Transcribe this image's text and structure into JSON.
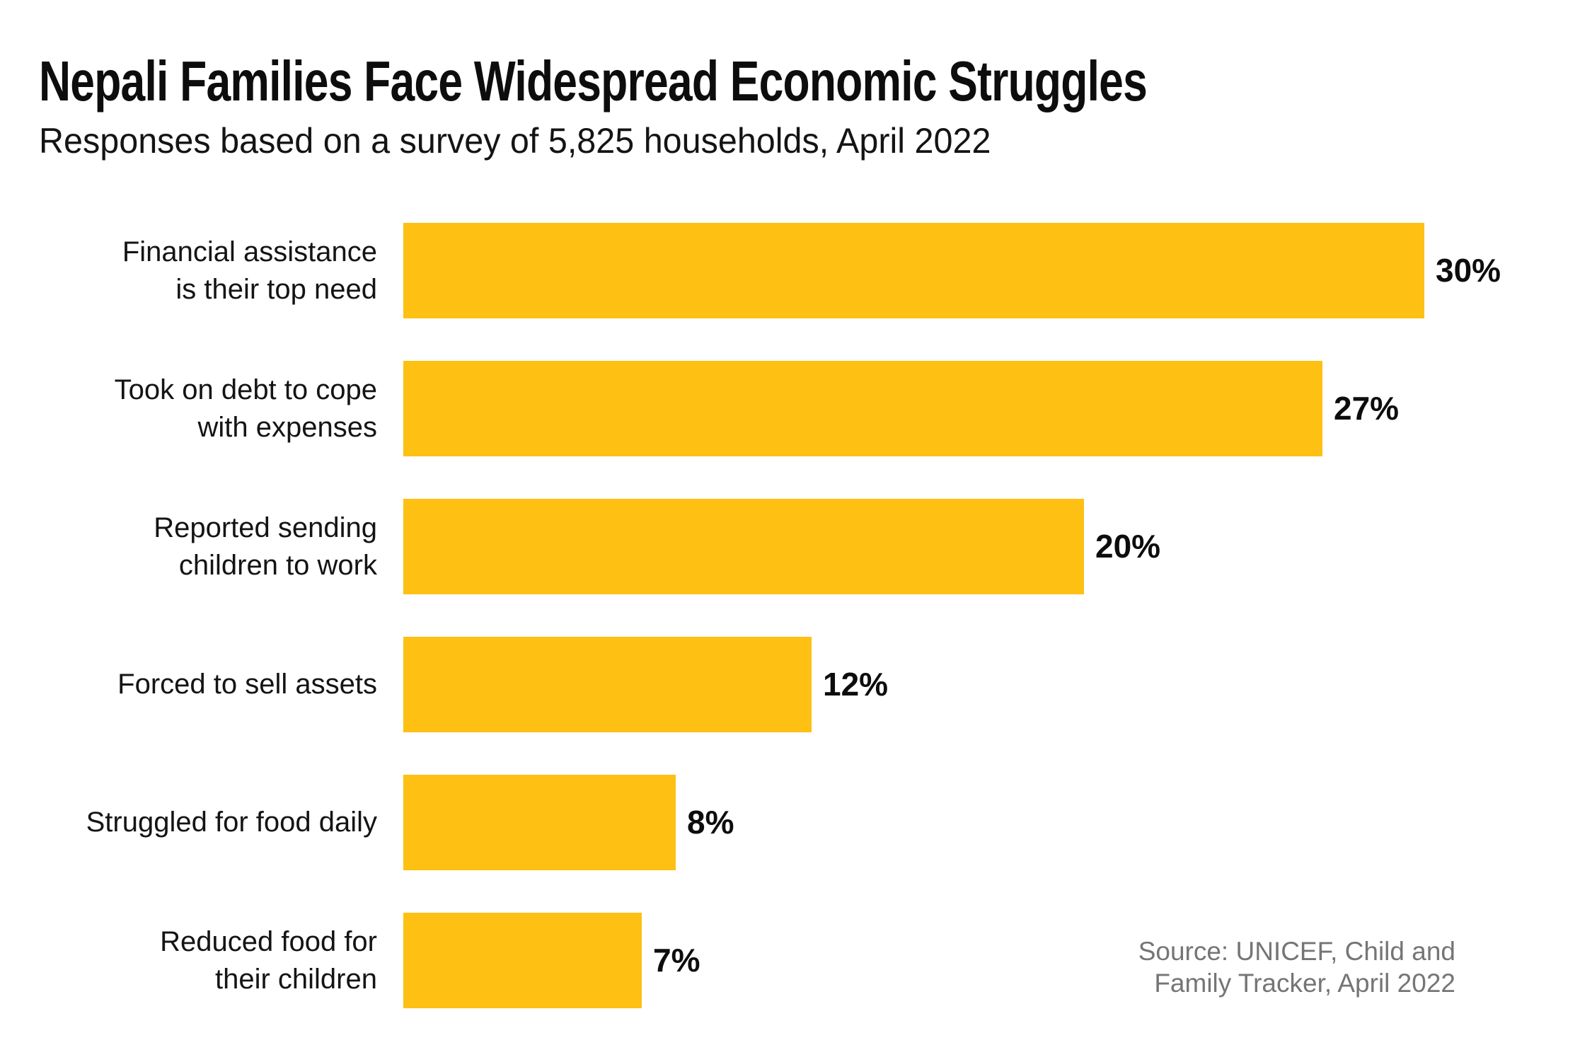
{
  "chart_data": {
    "type": "bar",
    "orientation": "horizontal",
    "title": "Nepali Families Face Widespread Economic Struggles",
    "subtitle": "Responses based on a survey of 5,825 households, April 2022",
    "categories": [
      "Financial assistance\nis their top need",
      "Took on debt to cope\nwith expenses",
      "Reported sending\nchildren to work",
      "Forced to sell assets",
      "Struggled for food daily",
      "Reduced food for\ntheir children"
    ],
    "values": [
      30,
      27,
      20,
      12,
      8,
      7
    ],
    "value_labels": [
      "30%",
      "27%",
      "20%",
      "12%",
      "8%",
      "7%"
    ],
    "unit": "%",
    "xlim": [
      0,
      30
    ],
    "grid": false,
    "legend": "none",
    "source": "Source: UNICEF, Child and\nFamily Tracker, April 2022"
  },
  "colors": {
    "bar": "#FDC013",
    "title_text": "#0d0d0d",
    "body_text": "#141414",
    "source_text": "#757575",
    "background": "#FFFFFF"
  }
}
